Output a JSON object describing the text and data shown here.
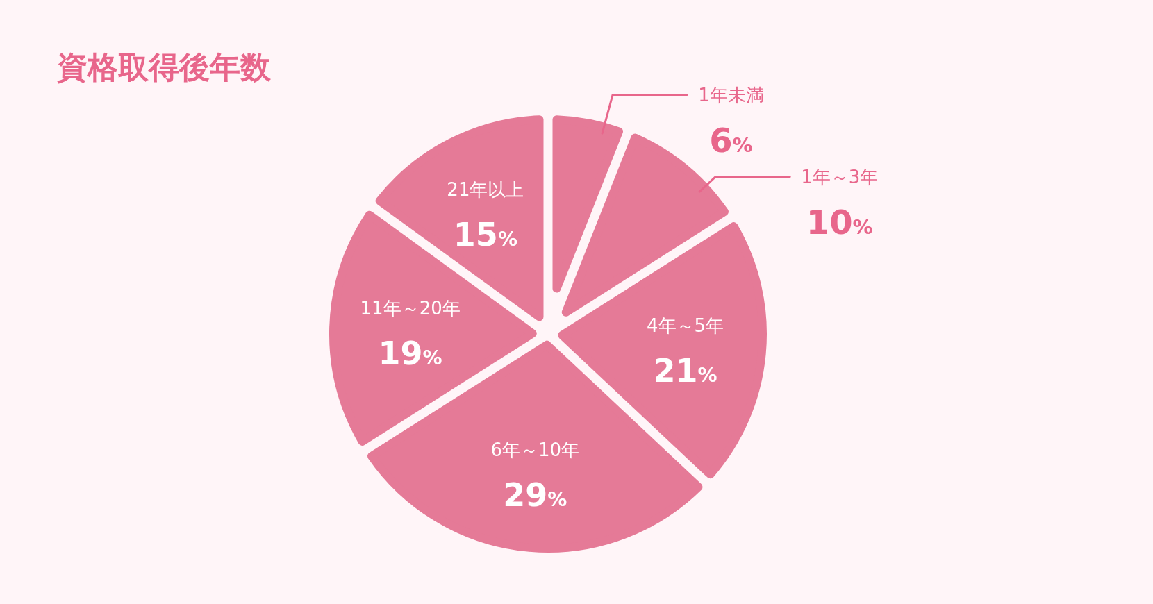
{
  "chart_data": {
    "type": "pie",
    "title": "資格取得後年数",
    "categories": [
      "1年未満",
      "1年～3年",
      "4年～5年",
      "6年～10年",
      "11年～20年",
      "21年以上"
    ],
    "values": [
      6,
      10,
      21,
      29,
      19,
      15
    ],
    "colors": [
      "#e57a97",
      "#e57a97",
      "#e57a97",
      "#e57a97",
      "#e57a97",
      "#e57a97"
    ],
    "value_labels": [
      "6%",
      "10%",
      "21%",
      "29%",
      "19%",
      "15%"
    ]
  }
}
